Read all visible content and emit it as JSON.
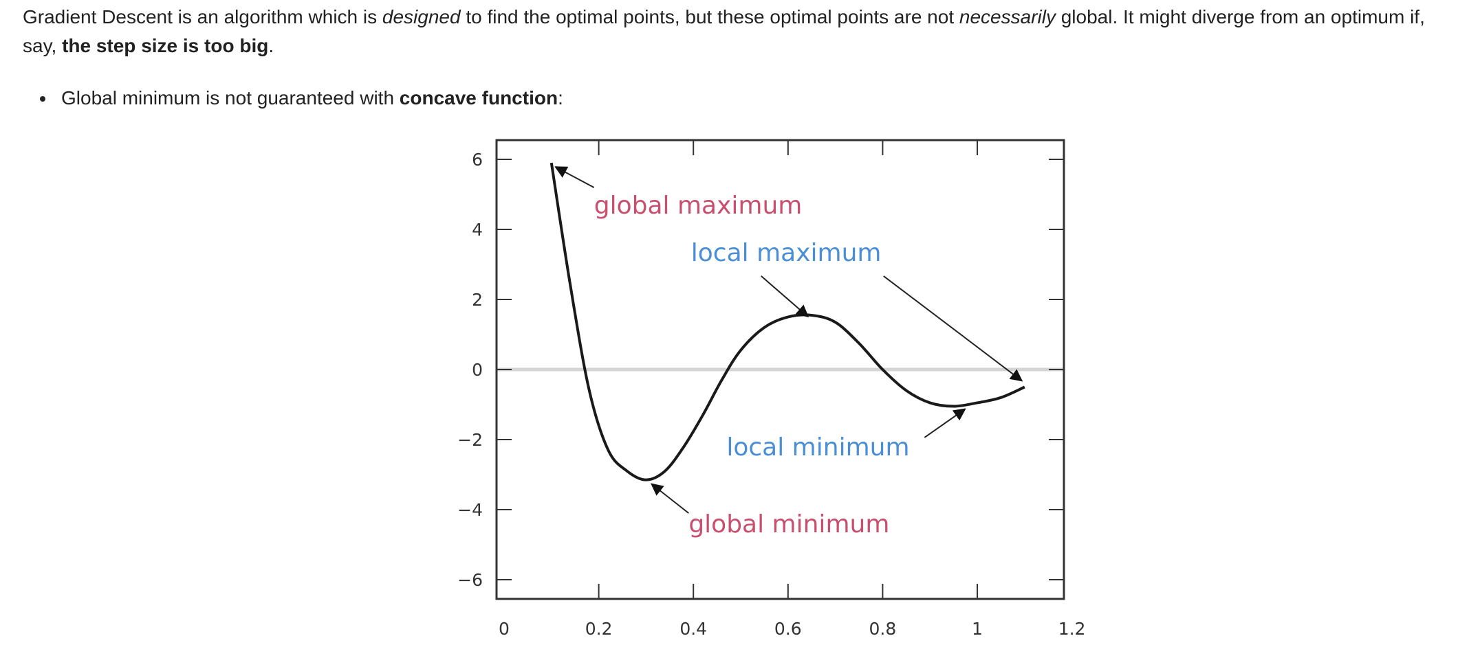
{
  "paragraph": {
    "part1": "Gradient Descent is an algorithm which is ",
    "em1": "designed",
    "part2": " to find the optimal points, but these optimal points are not ",
    "em2": "necessarily",
    "part3": " global. It might diverge from an optimum if, say, ",
    "strong1": "the step size is too big",
    "part4": "."
  },
  "bullet": {
    "text": "Global minimum is not guaranteed with ",
    "strong": "concave function",
    "suffix": ":"
  },
  "chart_data": {
    "type": "line",
    "title": "",
    "xlabel": "",
    "ylabel": "",
    "xlim": [
      0,
      1.2
    ],
    "ylim": [
      -7,
      6.5
    ],
    "grid": false,
    "x_ticks": [
      "0",
      "0.2",
      "0.4",
      "0.6",
      "0.8",
      "1",
      "1.2"
    ],
    "y_ticks": [
      "6",
      "4",
      "2",
      "0",
      "−2",
      "−4",
      "−6"
    ],
    "zero_line": 0,
    "series": [
      {
        "x": [
          0.1,
          0.14,
          0.18,
          0.22,
          0.26,
          0.3,
          0.34,
          0.38,
          0.42,
          0.46,
          0.5,
          0.55,
          0.6,
          0.65,
          0.7,
          0.75,
          0.8,
          0.85,
          0.9,
          0.95,
          1.0,
          1.05,
          1.1
        ],
        "y": [
          5.9,
          2.4,
          -0.6,
          -2.3,
          -2.9,
          -3.15,
          -2.9,
          -2.2,
          -1.3,
          -0.3,
          0.55,
          1.2,
          1.5,
          1.55,
          1.35,
          0.75,
          0.0,
          -0.6,
          -0.95,
          -1.05,
          -0.95,
          -0.8,
          -0.5
        ]
      }
    ],
    "annotations": [
      {
        "text": "global maximum",
        "color": "#c8506e",
        "point": [
          0.1,
          5.9
        ],
        "text_pos": [
          0.19,
          4.45
        ]
      },
      {
        "text": "local maximum",
        "color": "#4a8fd6",
        "point": [
          0.645,
          1.55
        ],
        "text_pos": [
          0.395,
          3.1
        ],
        "point2": [
          1.1,
          -0.4
        ]
      },
      {
        "text": "local minimum",
        "color": "#4a8fd6",
        "point": [
          0.98,
          -1.05
        ],
        "text_pos": [
          0.47,
          -2.45
        ]
      },
      {
        "text": "global minimum",
        "color": "#c8506e",
        "point": [
          0.3,
          -3.15
        ],
        "text_pos": [
          0.39,
          -4.65
        ]
      }
    ]
  }
}
